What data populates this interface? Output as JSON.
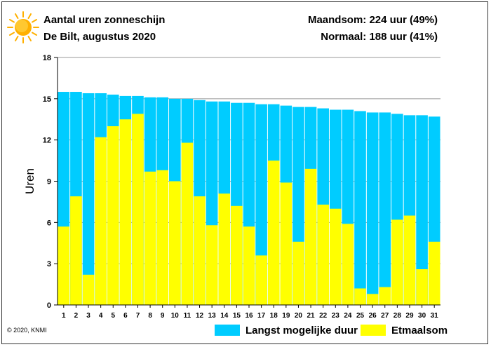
{
  "header": {
    "title": "Aantal uren zonneschijn",
    "subtitle": "De Bilt, augustus 2020",
    "month_sum": "Maandsom: 224 uur (49%)",
    "normal": "Normaal: 188 uur (41%)"
  },
  "footer": {
    "copyright": "© 2020, KNMI"
  },
  "legend": {
    "max_label": "Langst mogelijke duur",
    "actual_label": "Etmaalsom"
  },
  "colors": {
    "max": "#00CCFF",
    "actual": "#FFFF00",
    "sun": "#FFB000"
  },
  "chart_data": {
    "type": "bar",
    "title": "Aantal uren zonneschijn",
    "subtitle": "De Bilt, augustus 2020",
    "xlabel": "",
    "ylabel": "Uren",
    "ylim": [
      0,
      18
    ],
    "yticks": [
      0,
      3,
      6,
      9,
      12,
      15,
      18
    ],
    "grid": "horizontal",
    "legend_position": "bottom-right",
    "categories": [
      "1",
      "2",
      "3",
      "4",
      "5",
      "6",
      "7",
      "8",
      "9",
      "10",
      "11",
      "12",
      "13",
      "14",
      "15",
      "16",
      "17",
      "18",
      "19",
      "20",
      "21",
      "22",
      "23",
      "24",
      "25",
      "26",
      "27",
      "28",
      "29",
      "30",
      "31"
    ],
    "series": [
      {
        "name": "Langst mogelijke duur",
        "color": "#00CCFF",
        "values": [
          15.5,
          15.5,
          15.4,
          15.4,
          15.3,
          15.2,
          15.2,
          15.1,
          15.1,
          15.0,
          15.0,
          14.9,
          14.8,
          14.8,
          14.7,
          14.7,
          14.6,
          14.6,
          14.5,
          14.4,
          14.4,
          14.3,
          14.2,
          14.2,
          14.1,
          14.0,
          14.0,
          13.9,
          13.8,
          13.8,
          13.7
        ]
      },
      {
        "name": "Etmaalsom",
        "color": "#FFFF00",
        "values": [
          5.7,
          7.9,
          2.2,
          12.2,
          13.0,
          13.5,
          13.9,
          9.7,
          9.8,
          9.0,
          11.8,
          7.9,
          5.8,
          8.1,
          7.2,
          5.7,
          3.6,
          10.5,
          8.9,
          4.6,
          9.9,
          7.3,
          7.0,
          5.9,
          1.2,
          0.8,
          1.3,
          6.2,
          6.5,
          2.6,
          4.6
        ]
      }
    ]
  }
}
